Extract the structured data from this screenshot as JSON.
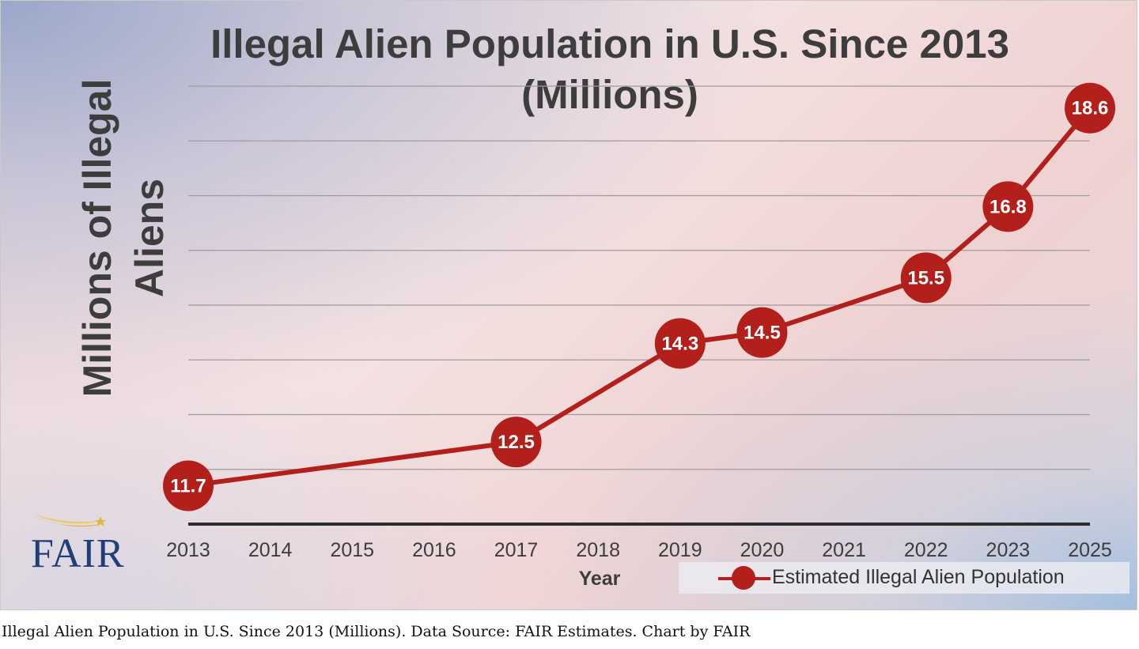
{
  "chart_data": {
    "type": "line",
    "title": "Illegal Alien Population in U.S. Since 2013",
    "subtitle": "(Millions)",
    "xlabel": "Year",
    "ylabel": "Millions of Illegal Aliens",
    "categories": [
      "2013",
      "2014",
      "2015",
      "2016",
      "2017",
      "2018",
      "2019",
      "2020",
      "2021",
      "2022",
      "2023",
      "2025"
    ],
    "series": [
      {
        "name": "Estimated Illegal Alien Population",
        "values": [
          11.7,
          null,
          null,
          null,
          12.5,
          null,
          14.3,
          14.5,
          null,
          15.5,
          16.8,
          18.6
        ]
      }
    ],
    "data_labels": [
      "11.7",
      "",
      "",
      "",
      "12.5",
      "",
      "14.3",
      "14.5",
      "",
      "15.5",
      "16.8",
      "18.6"
    ],
    "ylim": [
      11,
      19
    ],
    "grid": true,
    "legend_position": "bottom-right",
    "colors": {
      "series": "#b31f1b",
      "text": "#3d3d3d",
      "grid": "#a09a9c",
      "axis": "#2d2d2d"
    }
  },
  "logo": {
    "text": "FAIR",
    "color": "#1f3e7a",
    "swoosh_color": "#e2b53c"
  },
  "caption": "Illegal Alien Population in U.S. Since 2013 (Millions). Data Source: FAIR Estimates. Chart by FAIR"
}
